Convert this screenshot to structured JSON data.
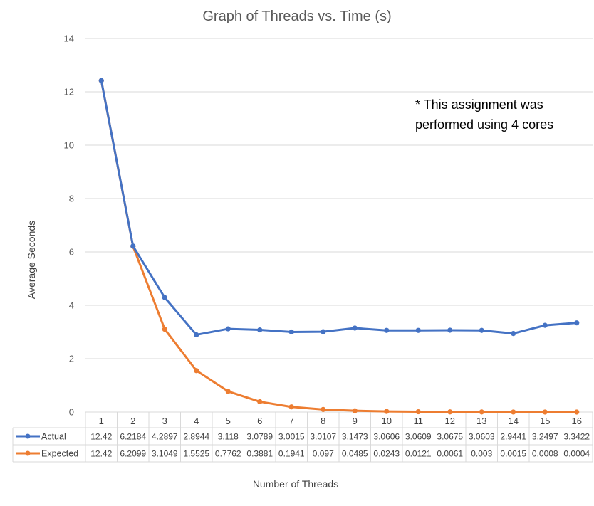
{
  "chart_data": {
    "type": "line",
    "title": "Graph of Threads vs. Time (s)",
    "xlabel": "Number of Threads",
    "ylabel": "Average Seconds",
    "ylim": [
      0,
      14
    ],
    "yticks": [
      0,
      2,
      4,
      6,
      8,
      10,
      12,
      14
    ],
    "grid": true,
    "legend": "left of data table",
    "categories": [
      "1",
      "2",
      "3",
      "4",
      "5",
      "6",
      "7",
      "8",
      "9",
      "10",
      "11",
      "12",
      "13",
      "14",
      "15",
      "16"
    ],
    "series": [
      {
        "name": "Actual",
        "color": "#4472C4",
        "values": [
          12.42,
          6.2184,
          4.2897,
          2.8944,
          3.118,
          3.0789,
          3.0015,
          3.0107,
          3.1473,
          3.0606,
          3.0609,
          3.0675,
          3.0603,
          2.9441,
          3.2497,
          3.3422
        ],
        "labels": [
          "12.42",
          "6.2184",
          "4.2897",
          "2.8944",
          "3.118",
          "3.0789",
          "3.0015",
          "3.0107",
          "3.1473",
          "3.0606",
          "3.0609",
          "3.0675",
          "3.0603",
          "2.9441",
          "3.2497",
          "3.3422"
        ]
      },
      {
        "name": "Expected",
        "color": "#ED7D31",
        "values": [
          12.42,
          6.2099,
          3.1049,
          1.5525,
          0.7762,
          0.3881,
          0.1941,
          0.097,
          0.0485,
          0.0243,
          0.0121,
          0.0061,
          0.003,
          0.0015,
          0.0008,
          0.0004
        ],
        "labels": [
          "12.42",
          "6.2099",
          "3.1049",
          "1.5525",
          "0.7762",
          "0.3881",
          "0.1941",
          "0.097",
          "0.0485",
          "0.0243",
          "0.0121",
          "0.0061",
          "0.003",
          "0.0015",
          "0.0008",
          "0.0004"
        ]
      }
    ],
    "annotation": [
      "* This assignment was",
      "performed using 4 cores"
    ]
  }
}
